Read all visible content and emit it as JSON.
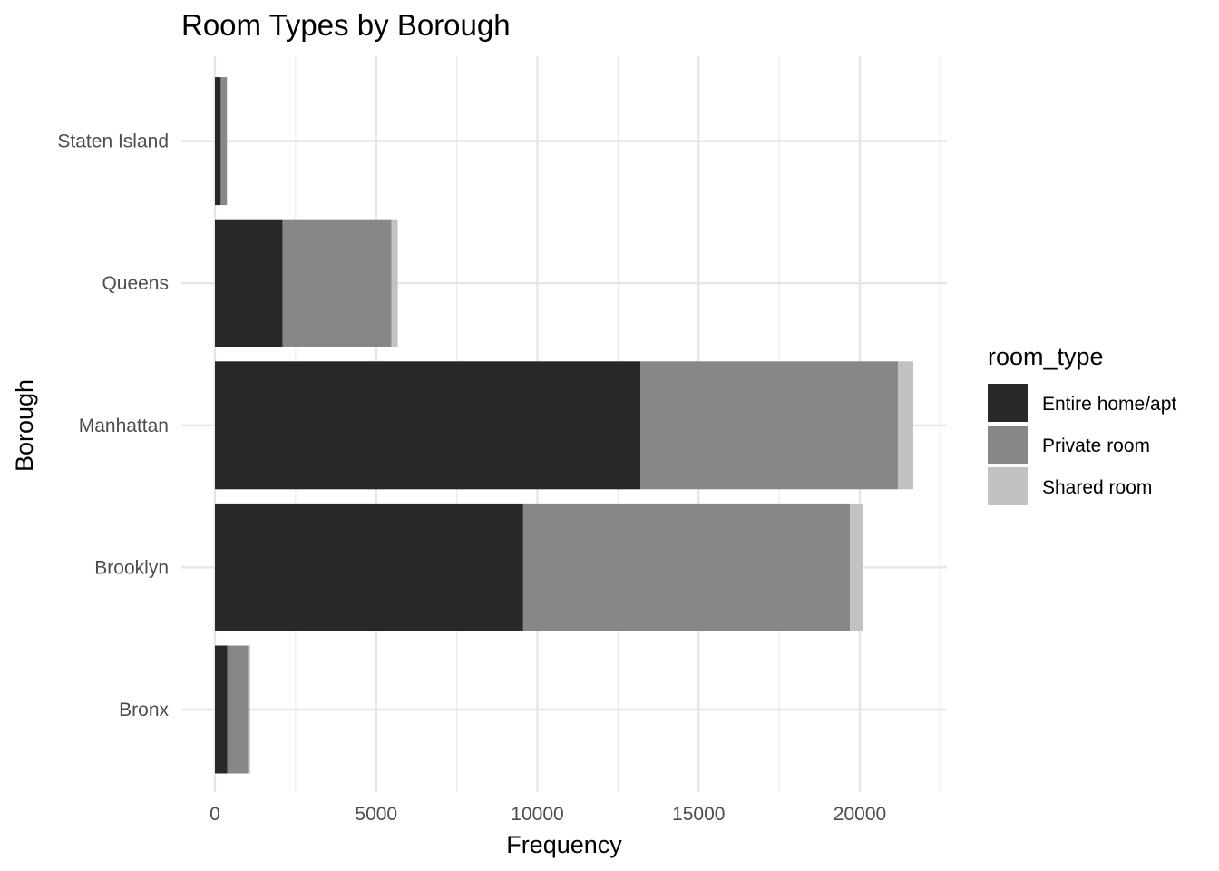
{
  "chart_data": {
    "type": "bar",
    "orientation": "horizontal",
    "stacked": true,
    "title": "Room Types by Borough",
    "xlabel": "Frequency",
    "ylabel": "Borough",
    "xlim": [
      0,
      22700
    ],
    "x_ticks": [
      0,
      5000,
      10000,
      15000,
      20000
    ],
    "x_tick_labels": [
      "0",
      "5000",
      "10000",
      "15000",
      "20000"
    ],
    "categories": [
      "Bronx",
      "Brooklyn",
      "Manhattan",
      "Queens",
      "Staten Island"
    ],
    "grid": true,
    "legend": {
      "title": "room_type",
      "position": "right"
    },
    "series": [
      {
        "name": "Entire home/apt",
        "color": "#282828",
        "values": [
          380,
          9560,
          13200,
          2100,
          180
        ]
      },
      {
        "name": "Private room",
        "color": "#878787",
        "values": [
          650,
          10130,
          7980,
          3370,
          190
        ]
      },
      {
        "name": "Shared room",
        "color": "#c2c2c2",
        "values": [
          60,
          410,
          480,
          200,
          10
        ]
      }
    ]
  }
}
